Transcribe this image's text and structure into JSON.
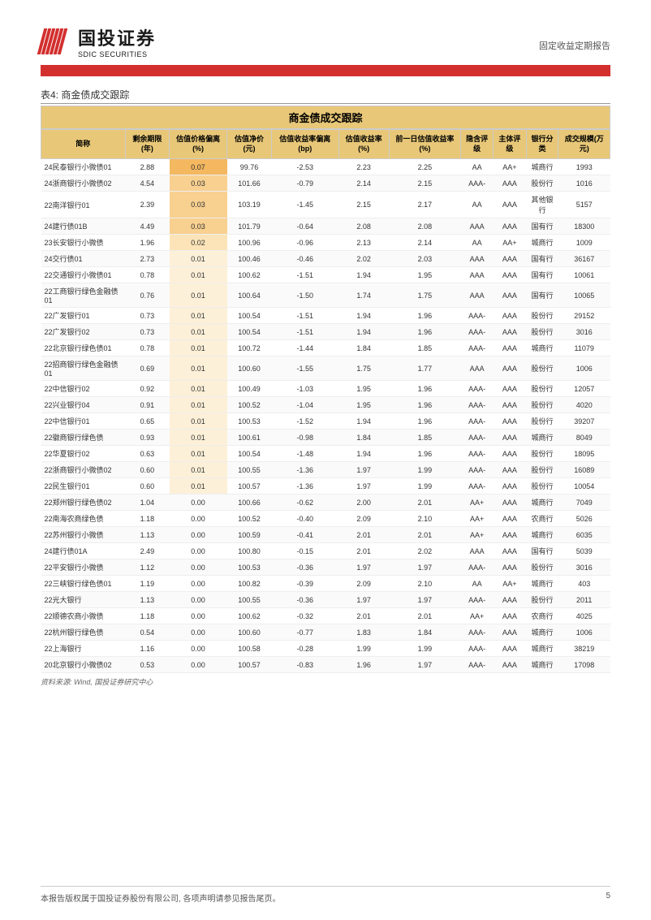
{
  "header": {
    "logo_cn": "国投证券",
    "logo_en": "SDIC SECURITIES",
    "report_type": "固定收益定期报告"
  },
  "table": {
    "caption": "表4: 商金债成交跟踪",
    "title": "商金债成交跟踪",
    "columns": [
      "简称",
      "剩余期限(年)",
      "估值价格偏离(%)",
      "估值净价(元)",
      "估值收益率偏离(bp)",
      "估值收益率(%)",
      "前一日估值收益率(%)",
      "隐含评级",
      "主体评级",
      "银行分类",
      "成交规模(万元)"
    ],
    "rows": [
      [
        "24民泰银行小微债01",
        "2.88",
        "0.07",
        "99.76",
        "-2.53",
        "2.23",
        "2.25",
        "AA",
        "AA+",
        "城商行",
        "1993"
      ],
      [
        "24浙商银行小微债02",
        "4.54",
        "0.03",
        "101.66",
        "-0.79",
        "2.14",
        "2.15",
        "AAA-",
        "AAA",
        "股份行",
        "1016"
      ],
      [
        "22南洋银行01",
        "2.39",
        "0.03",
        "103.19",
        "-1.45",
        "2.15",
        "2.17",
        "AA",
        "AAA",
        "其他银行",
        "5157"
      ],
      [
        "24建行债01B",
        "4.49",
        "0.03",
        "101.79",
        "-0.64",
        "2.08",
        "2.08",
        "AAA",
        "AAA",
        "国有行",
        "18300"
      ],
      [
        "23长安银行小微债",
        "1.96",
        "0.02",
        "100.96",
        "-0.96",
        "2.13",
        "2.14",
        "AA",
        "AA+",
        "城商行",
        "1009"
      ],
      [
        "24交行债01",
        "2.73",
        "0.01",
        "100.46",
        "-0.46",
        "2.02",
        "2.03",
        "AAA",
        "AAA",
        "国有行",
        "36167"
      ],
      [
        "22交通银行小微债01",
        "0.78",
        "0.01",
        "100.62",
        "-1.51",
        "1.94",
        "1.95",
        "AAA",
        "AAA",
        "国有行",
        "10061"
      ],
      [
        "22工商银行绿色金融债01",
        "0.76",
        "0.01",
        "100.64",
        "-1.50",
        "1.74",
        "1.75",
        "AAA",
        "AAA",
        "国有行",
        "10065"
      ],
      [
        "22广发银行01",
        "0.73",
        "0.01",
        "100.54",
        "-1.51",
        "1.94",
        "1.96",
        "AAA-",
        "AAA",
        "股份行",
        "29152"
      ],
      [
        "22广发银行02",
        "0.73",
        "0.01",
        "100.54",
        "-1.51",
        "1.94",
        "1.96",
        "AAA-",
        "AAA",
        "股份行",
        "3016"
      ],
      [
        "22北京银行绿色债01",
        "0.78",
        "0.01",
        "100.72",
        "-1.44",
        "1.84",
        "1.85",
        "AAA-",
        "AAA",
        "城商行",
        "11079"
      ],
      [
        "22招商银行绿色金融债01",
        "0.69",
        "0.01",
        "100.60",
        "-1.55",
        "1.75",
        "1.77",
        "AAA",
        "AAA",
        "股份行",
        "1006"
      ],
      [
        "22中信银行02",
        "0.92",
        "0.01",
        "100.49",
        "-1.03",
        "1.95",
        "1.96",
        "AAA-",
        "AAA",
        "股份行",
        "12057"
      ],
      [
        "22兴业银行04",
        "0.91",
        "0.01",
        "100.52",
        "-1.04",
        "1.95",
        "1.96",
        "AAA-",
        "AAA",
        "股份行",
        "4020"
      ],
      [
        "22中信银行01",
        "0.65",
        "0.01",
        "100.53",
        "-1.52",
        "1.94",
        "1.96",
        "AAA-",
        "AAA",
        "股份行",
        "39207"
      ],
      [
        "22徽商银行绿色债",
        "0.93",
        "0.01",
        "100.61",
        "-0.98",
        "1.84",
        "1.85",
        "AAA-",
        "AAA",
        "城商行",
        "8049"
      ],
      [
        "22华夏银行02",
        "0.63",
        "0.01",
        "100.54",
        "-1.48",
        "1.94",
        "1.96",
        "AAA-",
        "AAA",
        "股份行",
        "18095"
      ],
      [
        "22浙商银行小微债02",
        "0.60",
        "0.01",
        "100.55",
        "-1.36",
        "1.97",
        "1.99",
        "AAA-",
        "AAA",
        "股份行",
        "16089"
      ],
      [
        "22民生银行01",
        "0.60",
        "0.01",
        "100.57",
        "-1.36",
        "1.97",
        "1.99",
        "AAA-",
        "AAA",
        "股份行",
        "10054"
      ],
      [
        "22郑州银行绿色债02",
        "1.04",
        "0.00",
        "100.66",
        "-0.62",
        "2.00",
        "2.01",
        "AA+",
        "AAA",
        "城商行",
        "7049"
      ],
      [
        "22南海农商绿色债",
        "1.18",
        "0.00",
        "100.52",
        "-0.40",
        "2.09",
        "2.10",
        "AA+",
        "AAA",
        "农商行",
        "5026"
      ],
      [
        "22苏州银行小微债",
        "1.13",
        "0.00",
        "100.59",
        "-0.41",
        "2.01",
        "2.01",
        "AA+",
        "AAA",
        "城商行",
        "6035"
      ],
      [
        "24建行债01A",
        "2.49",
        "0.00",
        "100.80",
        "-0.15",
        "2.01",
        "2.02",
        "AAA",
        "AAA",
        "国有行",
        "5039"
      ],
      [
        "22平安银行小微债",
        "1.12",
        "0.00",
        "100.53",
        "-0.36",
        "1.97",
        "1.97",
        "AAA-",
        "AAA",
        "股份行",
        "3016"
      ],
      [
        "22三峡银行绿色债01",
        "1.19",
        "0.00",
        "100.82",
        "-0.39",
        "2.09",
        "2.10",
        "AA",
        "AA+",
        "城商行",
        "403"
      ],
      [
        "22光大银行",
        "1.13",
        "0.00",
        "100.55",
        "-0.36",
        "1.97",
        "1.97",
        "AAA-",
        "AAA",
        "股份行",
        "2011"
      ],
      [
        "22顺德农商小微债",
        "1.18",
        "0.00",
        "100.62",
        "-0.32",
        "2.01",
        "2.01",
        "AA+",
        "AAA",
        "农商行",
        "4025"
      ],
      [
        "22杭州银行绿色债",
        "0.54",
        "0.00",
        "100.60",
        "-0.77",
        "1.83",
        "1.84",
        "AAA-",
        "AAA",
        "城商行",
        "1006"
      ],
      [
        "22上海银行",
        "1.16",
        "0.00",
        "100.58",
        "-0.28",
        "1.99",
        "1.99",
        "AAA-",
        "AAA",
        "城商行",
        "38219"
      ],
      [
        "20北京银行小微债02",
        "0.53",
        "0.00",
        "100.57",
        "-0.83",
        "1.96",
        "1.97",
        "AAA-",
        "AAA",
        "城商行",
        "17098"
      ]
    ],
    "highlight_col_index": 2,
    "highlight_levels": {
      "0": "hl1",
      "1": "hl2",
      "2": "hl2",
      "3": "hl2",
      "4": "hl3",
      "5": "hl4",
      "6": "hl4",
      "7": "hl4",
      "8": "hl4",
      "9": "hl4",
      "10": "hl4",
      "11": "hl4",
      "12": "hl4",
      "13": "hl4",
      "14": "hl4",
      "15": "hl4",
      "16": "hl4",
      "17": "hl4",
      "18": "hl4"
    },
    "source": "资料来源: Wind, 国投证券研究中心"
  },
  "footer": {
    "copyright": "本报告版权属于国投证券股份有限公司, 各项声明请参见报告尾页。",
    "page": "5"
  },
  "colors": {
    "brand_red": "#d32f2f",
    "header_bg": "#e8c878"
  }
}
